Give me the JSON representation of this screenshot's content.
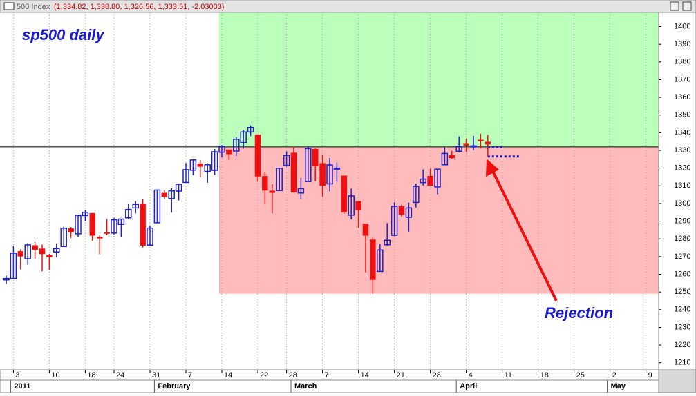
{
  "chart_data": {
    "type": "candlestick",
    "window_title": "500 Index",
    "window_values": "(1,334.82, 1,338.80, 1,326.56, 1,333.51, -2.03003)",
    "title": "sp500 daily",
    "annotation": "Rejection",
    "categories": [
      null,
      "3",
      null,
      null,
      null,
      null,
      "10",
      null,
      null,
      null,
      null,
      "18",
      null,
      null,
      null,
      "24",
      null,
      null,
      null,
      null,
      "31",
      null,
      null,
      null,
      null,
      "7",
      null,
      null,
      null,
      null,
      "14",
      null,
      null,
      null,
      null,
      "22",
      null,
      null,
      null,
      "28",
      null,
      null,
      null,
      null,
      "7",
      null,
      null,
      null,
      null,
      "14",
      null,
      null,
      null,
      null,
      "21",
      null,
      null,
      null,
      null,
      "28",
      null,
      null,
      null,
      null,
      "4",
      null,
      null,
      null,
      null,
      "11",
      null,
      null,
      null,
      null,
      "18",
      null,
      null,
      null,
      null,
      "25",
      null,
      null,
      null,
      null,
      "2",
      null,
      null,
      null,
      null,
      "9",
      null
    ],
    "months": [
      null,
      "2011",
      null,
      null,
      null,
      null,
      null,
      null,
      null,
      null,
      null,
      null,
      null,
      null,
      null,
      null,
      null,
      null,
      null,
      null,
      null,
      "February",
      null,
      null,
      null,
      null,
      null,
      null,
      null,
      null,
      null,
      null,
      null,
      null,
      null,
      null,
      null,
      null,
      null,
      null,
      "March",
      null,
      null,
      null,
      null,
      null,
      null,
      null,
      null,
      null,
      null,
      null,
      null,
      null,
      null,
      null,
      null,
      null,
      null,
      null,
      null,
      null,
      null,
      "April",
      null,
      null,
      null,
      null,
      null,
      null,
      null,
      null,
      null,
      null,
      null,
      null,
      null,
      null,
      null,
      null,
      null,
      null,
      null,
      null,
      "May",
      null,
      null,
      null,
      null,
      null,
      null
    ],
    "open": [
      1256.8,
      1257.6,
      1272.9,
      1268.8,
      1276.3,
      1274.4,
      1270.8,
      1272.6,
      1275.7,
      1285.8,
      1282.9,
      1293.2,
      1294.5,
      1280.9,
      1283.6,
      1283.3,
      1288.2,
      1291.9,
      1297.5,
      1299.6,
      1276.5,
      1289.1,
      1305.9,
      1302.8,
      1307.0,
      1311.9,
      1318.8,
      1322.5,
      1318.1,
      1318.7,
      1329.0,
      1330.4,
      1329.6,
      1334.4,
      1340.4,
      1338.9,
      1315.4,
      1307.1,
      1307.3,
      1321.6,
      1328.6,
      1305.9,
      1312.4,
      1330.7,
      1322.7,
      1311.1,
      1319.9,
      1315.7,
      1293.4,
      1301.2,
      1288.5,
      1279.5,
      1261.6,
      1276.7,
      1282.0,
      1298.3,
      1292.2,
      1300.6,
      1311.8,
      1315.5,
      1309.4,
      1321.9,
      1327.4,
      1329.5,
      1333.6,
      1332.0,
      1335.9,
      1334.8,
      null,
      null,
      null,
      null,
      null,
      null,
      null,
      null,
      null,
      null,
      null,
      null,
      null,
      null,
      null,
      null,
      null,
      null,
      null,
      null,
      null,
      null,
      null
    ],
    "high": [
      1259.3,
      1276.2,
      1274.1,
      1277.6,
      1278.2,
      1276.8,
      1271.5,
      1277.4,
      1286.9,
      1286.7,
      1293.2,
      1296.1,
      1294.6,
      1281.9,
      1291.2,
      1291.9,
      1291.3,
      1299.7,
      1301.3,
      1302.7,
      1287.2,
      1308.0,
      1307.6,
      1308.6,
      1311.0,
      1322.9,
      1324.9,
      1324.5,
      1322.8,
      1330.8,
      1333.0,
      1330.4,
      1337.6,
      1341.5,
      1344.1,
      1338.9,
      1317.9,
      1310.9,
      1320.0,
      1329.4,
      1332.1,
      1314.4,
      1332.3,
      1331.1,
      1327.7,
      1325.7,
      1323.2,
      1315.7,
      1308.4,
      1301.2,
      1288.5,
      1280.9,
      1277.1,
      1288.9,
      1300.6,
      1299.4,
      1300.5,
      1311.3,
      1319.2,
      1319.7,
      1319.5,
      1331.7,
      1329.8,
      1337.9,
      1336.7,
      1338.2,
      1339.4,
      1338.8,
      null,
      null,
      null,
      null,
      null,
      null,
      null,
      null,
      null,
      null,
      null,
      null,
      null,
      null,
      null,
      null,
      null,
      null,
      null,
      null,
      null,
      null,
      null
    ],
    "low": [
      1254.6,
      1257.6,
      1262.7,
      1265.4,
      1268.7,
      1261.7,
      1262.3,
      1269.6,
      1275.7,
      1280.5,
      1281.1,
      1290.2,
      1278.9,
      1271.3,
      1282.1,
      1282.5,
      1281.1,
      1291.0,
      1294.4,
      1275.1,
      1276.0,
      1289.1,
      1302.6,
      1294.8,
      1301.7,
      1311.9,
      1316.0,
      1314.9,
      1311.7,
      1316.1,
      1326.0,
      1324.6,
      1326.9,
      1331.0,
      1338.1,
      1312.3,
      1299.6,
      1294.3,
      1307.3,
      1320.9,
      1306.1,
      1302.6,
      1312.4,
      1312.6,
      1303.9,
      1306.9,
      1312.3,
      1294.2,
      1291.0,
      1286.4,
      1261.1,
      1249.1,
      1261.6,
      1276.2,
      1282.0,
      1292.7,
      1284.1,
      1297.7,
      1310.2,
      1310.2,
      1305.3,
      1321.9,
      1325.0,
      1328.9,
      1329.1,
      1330.0,
      1331.1,
      1326.6,
      null,
      null,
      null,
      null,
      null,
      null,
      null,
      null,
      null,
      null,
      null,
      null,
      null,
      null,
      null,
      null,
      null,
      null,
      null,
      null,
      null,
      null,
      null
    ],
    "close": [
      1257.6,
      1271.9,
      1270.2,
      1276.6,
      1273.9,
      1271.5,
      1269.8,
      1274.5,
      1286.0,
      1283.8,
      1293.2,
      1295.0,
      1281.9,
      1280.3,
      1283.4,
      1290.8,
      1291.2,
      1296.6,
      1299.5,
      1276.3,
      1286.1,
      1307.6,
      1304.0,
      1307.1,
      1310.9,
      1319.1,
      1324.6,
      1320.9,
      1321.9,
      1329.2,
      1332.3,
      1328.0,
      1336.3,
      1340.4,
      1343.0,
      1315.4,
      1307.4,
      1306.1,
      1319.9,
      1327.2,
      1306.3,
      1308.4,
      1331.0,
      1321.2,
      1310.1,
      1321.8,
      1320.0,
      1295.1,
      1304.3,
      1296.4,
      1281.9,
      1256.9,
      1273.7,
      1279.2,
      1298.4,
      1293.8,
      1297.5,
      1309.7,
      1313.8,
      1310.2,
      1319.4,
      1328.3,
      1325.8,
      1332.4,
      1332.9,
      1332.6,
      1335.5,
      1333.5,
      null,
      null,
      null,
      null,
      null,
      null,
      null,
      null,
      null,
      null,
      null,
      null,
      null,
      null,
      null,
      null,
      null,
      null,
      null,
      null,
      null,
      null,
      null
    ],
    "up_color": "#2020c8",
    "down_color": "#ee1010",
    "zones": [
      {
        "low": 1332,
        "high": 1408,
        "start_index": 30,
        "color": "#bbffbb"
      },
      {
        "low": 1249,
        "high": 1332,
        "start_index": 30,
        "color": "#ffbbbb"
      }
    ],
    "hline": 1332,
    "dotted_lines": [
      {
        "value": 1331.8,
        "from_index": 67,
        "to_index": 69
      },
      {
        "value": 1326.6,
        "from_index": 67,
        "to_index": 71.5
      }
    ],
    "ylim": [
      1206,
      1408
    ],
    "yticks": [
      1210,
      1220,
      1230,
      1240,
      1250,
      1260,
      1270,
      1280,
      1290,
      1300,
      1310,
      1320,
      1330,
      1340,
      1350,
      1360,
      1370,
      1380,
      1390,
      1400
    ],
    "grid": true
  }
}
